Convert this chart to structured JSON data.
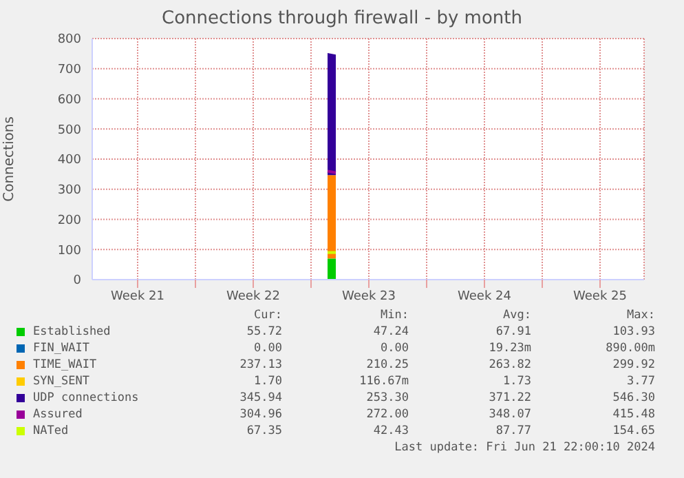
{
  "chart_data": {
    "type": "area",
    "stacked": true,
    "title": "Connections through firewall - by month",
    "ylabel": "Connections",
    "x": [
      "2024-06-04T00:00",
      "2024-06-04T12:00"
    ],
    "xlim": [
      "2024-05-20T18:00",
      "2024-06-23T04:00"
    ],
    "xticks": [
      {
        "value": "2024-05-23T12:00",
        "label": "Week 21"
      },
      {
        "value": "2024-05-27",
        "label": null
      },
      {
        "value": "2024-05-30T12:00",
        "label": "Week 22"
      },
      {
        "value": "2024-06-03",
        "label": null
      },
      {
        "value": "2024-06-06T12:00",
        "label": "Week 23"
      },
      {
        "value": "2024-06-10",
        "label": null
      },
      {
        "value": "2024-06-13T12:00",
        "label": "Week 24"
      },
      {
        "value": "2024-06-17",
        "label": null
      },
      {
        "value": "2024-06-20T12:00",
        "label": "Week 25"
      }
    ],
    "ylim": [
      0,
      800
    ],
    "yticks": [
      0,
      100,
      200,
      300,
      400,
      500,
      600,
      700,
      800
    ],
    "grid": true,
    "legend": "bottom",
    "series": [
      {
        "name": "Established",
        "color": "#00cc00",
        "values": [
          70,
          70
        ]
      },
      {
        "name": "FIN_WAIT",
        "color": "#0066b3",
        "values": [
          null,
          null
        ]
      },
      {
        "name": "TIME_WAIT",
        "color": "#ff8000",
        "values": [
          277,
          277
        ]
      },
      {
        "name": "SYN_SENT",
        "color": "#ffcc00",
        "values": [
          null,
          null
        ]
      },
      {
        "name": "UDP connections",
        "color": "#330099",
        "values": [
          405,
          400
        ]
      },
      {
        "name": "Assured",
        "type": "line",
        "color": "#990099",
        "values": [
          360,
          355
        ]
      },
      {
        "name": "NATed",
        "type": "line",
        "color": "#ccff00",
        "values": [
          90,
          90
        ]
      }
    ],
    "annotations": [
      "Cur:",
      "Min:",
      "Avg:",
      "Max:",
      "55.72",
      "47.24",
      "67.91",
      "103.93",
      "0.00",
      "0.00",
      "19.23m",
      "890.00m",
      "237.13",
      "210.25",
      "263.82",
      "299.92",
      "1.70",
      "116.67m",
      "1.73",
      "3.77",
      "345.94",
      "253.30",
      "371.22",
      "546.30",
      "304.96",
      "272.00",
      "348.07",
      "415.48",
      "67.35",
      "42.43",
      "87.77",
      "154.65",
      "Last update: Fri Jun 21 22:00:10 2024"
    ]
  }
}
